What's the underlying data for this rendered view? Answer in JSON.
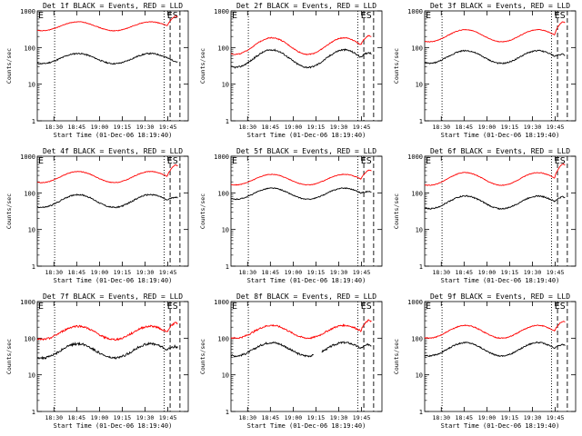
{
  "page": {
    "bg": "#ffffff",
    "events_color": "#000000",
    "lld_color": "#ff0000"
  },
  "chart_data": [
    {
      "type": "line",
      "title": "Det 1f BLACK = Events, RED = LLD",
      "xlabel": "Start Time (01-Dec-06 18:19:40)",
      "ylabel": "Counts/sec",
      "yscale": "log",
      "ylim": [
        1,
        1000
      ],
      "yticks": [
        "1",
        "10",
        "100",
        "1000"
      ],
      "xticks": [
        "18:30",
        "18:45",
        "19:00",
        "19:15",
        "19:30",
        "19:45"
      ],
      "markers": [
        "E",
        "ES"
      ],
      "series": [
        {
          "name": "Events",
          "color": "#000000",
          "base": 50,
          "amp": 0.32,
          "noise": 0.04,
          "end_jump": 1.0
        },
        {
          "name": "LLD",
          "color": "#ff0000",
          "base": 380,
          "amp": 0.28,
          "noise": 0.02,
          "end_jump": 2.2
        }
      ]
    },
    {
      "type": "line",
      "title": "Det 2f BLACK = Events, RED = LLD",
      "xlabel": "Start Time (01-Dec-06 18:19:40)",
      "ylabel": "Counts/sec",
      "yscale": "log",
      "ylim": [
        1,
        1000
      ],
      "yticks": [
        "1",
        "10",
        "100",
        "1000"
      ],
      "xticks": [
        "18:30",
        "18:45",
        "19:00",
        "19:15",
        "19:30",
        "19:45"
      ],
      "markers": [
        "E",
        "ES"
      ],
      "series": [
        {
          "name": "Events",
          "color": "#000000",
          "base": 50,
          "amp": 0.55,
          "noise": 0.05,
          "end_jump": 2.0
        },
        {
          "name": "LLD",
          "color": "#ff0000",
          "base": 110,
          "amp": 0.52,
          "noise": 0.03,
          "end_jump": 2.6
        }
      ]
    },
    {
      "type": "line",
      "title": "Det 3f BLACK = Events, RED = LLD",
      "xlabel": "Start Time (01-Dec-06 18:19:40)",
      "ylabel": "Counts/sec",
      "yscale": "log",
      "ylim": [
        1,
        1000
      ],
      "yticks": [
        "1",
        "10",
        "100",
        "1000"
      ],
      "xticks": [
        "18:30",
        "18:45",
        "19:00",
        "19:15",
        "19:30",
        "19:45"
      ],
      "markers": [
        "E",
        "ES"
      ],
      "series": [
        {
          "name": "Events",
          "color": "#000000",
          "base": 55,
          "amp": 0.4,
          "noise": 0.04,
          "end_jump": 1.5
        },
        {
          "name": "LLD",
          "color": "#ff0000",
          "base": 210,
          "amp": 0.38,
          "noise": 0.02,
          "end_jump": 3.0
        }
      ]
    },
    {
      "type": "line",
      "title": "Det 4f BLACK = Events, RED = LLD",
      "xlabel": "Start Time (01-Dec-06 18:19:40)",
      "ylabel": "Counts/sec",
      "yscale": "log",
      "ylim": [
        1,
        1000
      ],
      "yticks": [
        "1",
        "10",
        "100",
        "1000"
      ],
      "xticks": [
        "18:30",
        "18:45",
        "19:00",
        "19:15",
        "19:30",
        "19:45"
      ],
      "markers": [
        "E",
        "ES"
      ],
      "series": [
        {
          "name": "Events",
          "color": "#000000",
          "base": 60,
          "amp": 0.4,
          "noise": 0.04,
          "end_jump": 1.6
        },
        {
          "name": "LLD",
          "color": "#ff0000",
          "base": 270,
          "amp": 0.35,
          "noise": 0.02,
          "end_jump": 2.6
        }
      ]
    },
    {
      "type": "line",
      "title": "Det 5f BLACK = Events, RED = LLD",
      "xlabel": "Start Time (01-Dec-06 18:19:40)",
      "ylabel": "Counts/sec",
      "yscale": "log",
      "ylim": [
        1,
        1000
      ],
      "yticks": [
        "1",
        "10",
        "100",
        "1000"
      ],
      "xticks": [
        "18:30",
        "18:45",
        "19:00",
        "19:15",
        "19:30",
        "19:45"
      ],
      "markers": [
        "E",
        "ES"
      ],
      "series": [
        {
          "name": "Events",
          "color": "#000000",
          "base": 95,
          "amp": 0.35,
          "noise": 0.03,
          "end_jump": 1.4
        },
        {
          "name": "LLD",
          "color": "#ff0000",
          "base": 230,
          "amp": 0.33,
          "noise": 0.02,
          "end_jump": 2.2
        }
      ]
    },
    {
      "type": "line",
      "title": "Det 6f BLACK = Events, RED = LLD",
      "xlabel": "Start Time (01-Dec-06 18:19:40)",
      "ylabel": "Counts/sec",
      "yscale": "log",
      "ylim": [
        1,
        1000
      ],
      "yticks": [
        "1",
        "10",
        "100",
        "1000"
      ],
      "xticks": [
        "18:30",
        "18:45",
        "19:00",
        "19:15",
        "19:30",
        "19:45"
      ],
      "markers": [
        "E",
        "ES"
      ],
      "series": [
        {
          "name": "Events",
          "color": "#000000",
          "base": 55,
          "amp": 0.4,
          "noise": 0.04,
          "end_jump": 1.8
        },
        {
          "name": "LLD",
          "color": "#ff0000",
          "base": 240,
          "amp": 0.4,
          "noise": 0.02,
          "end_jump": 3.2
        }
      ]
    },
    {
      "type": "line",
      "title": "Det 7f BLACK = Events, RED = LLD",
      "xlabel": "Start Time (01-Dec-06 18:19:40)",
      "ylabel": "Counts/sec",
      "yscale": "log",
      "ylim": [
        1,
        1000
      ],
      "yticks": [
        "1",
        "10",
        "100",
        "1000"
      ],
      "xticks": [
        "18:30",
        "18:45",
        "19:00",
        "19:15",
        "19:30",
        "19:45"
      ],
      "markers": [
        "E",
        "ES"
      ],
      "series": [
        {
          "name": "Events",
          "color": "#000000",
          "base": 45,
          "amp": 0.45,
          "noise": 0.07,
          "end_jump": 1.7
        },
        {
          "name": "LLD",
          "color": "#ff0000",
          "base": 140,
          "amp": 0.42,
          "noise": 0.06,
          "end_jump": 2.4
        }
      ]
    },
    {
      "type": "line",
      "title": "Det 8f BLACK = Events, RED = LLD",
      "xlabel": "Start Time (01-Dec-06 18:19:40)",
      "ylabel": "Counts/sec",
      "yscale": "log",
      "ylim": [
        1,
        1000
      ],
      "yticks": [
        "1",
        "10",
        "100",
        "1000"
      ],
      "xticks": [
        "18:30",
        "18:45",
        "19:00",
        "19:15",
        "19:30",
        "19:45"
      ],
      "markers": [
        "E",
        "ES"
      ],
      "gap": [
        0.55,
        0.6
      ],
      "series": [
        {
          "name": "Events",
          "color": "#000000",
          "base": 50,
          "amp": 0.42,
          "noise": 0.06,
          "end_jump": 1.7
        },
        {
          "name": "LLD",
          "color": "#ff0000",
          "base": 150,
          "amp": 0.4,
          "noise": 0.05,
          "end_jump": 2.6
        }
      ]
    },
    {
      "type": "line",
      "title": "Det 9f BLACK = Events, RED = LLD",
      "xlabel": "Start Time (01-Dec-06 18:19:40)",
      "ylabel": "Counts/sec",
      "yscale": "log",
      "ylim": [
        1,
        1000
      ],
      "yticks": [
        "1",
        "10",
        "100",
        "1000"
      ],
      "xticks": [
        "18:30",
        "18:45",
        "19:00",
        "19:15",
        "19:30",
        "19:45"
      ],
      "markers": [
        "E",
        "ES"
      ],
      "series": [
        {
          "name": "Events",
          "color": "#000000",
          "base": 50,
          "amp": 0.42,
          "noise": 0.04,
          "end_jump": 1.7
        },
        {
          "name": "LLD",
          "color": "#ff0000",
          "base": 150,
          "amp": 0.4,
          "noise": 0.03,
          "end_jump": 2.4
        }
      ]
    }
  ]
}
